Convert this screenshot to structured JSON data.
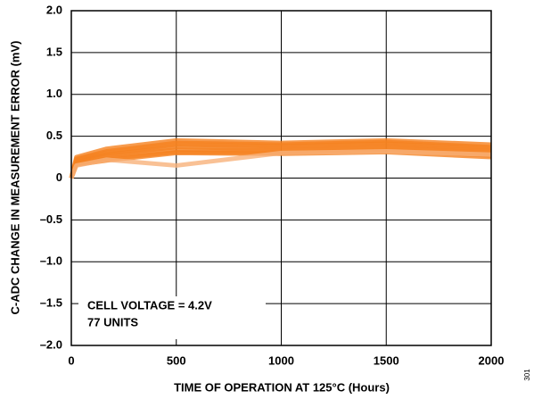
{
  "chart_data": {
    "type": "line",
    "x_label": "TIME OF OPERATION AT 125°C (Hours)",
    "y_label": "C-ADC CHANGE IN MEASUREMENT ERROR (mV)",
    "annotations": [
      "CELL VOLTAGE = 4.2V",
      "77 UNITS"
    ],
    "figure_id": "301",
    "x": [
      0,
      24,
      168,
      500,
      1000,
      1500,
      2000
    ],
    "series": [
      {
        "color": "#f58220",
        "values": [
          0,
          0.25,
          0.35,
          0.45,
          0.42,
          0.45,
          0.4
        ]
      },
      {
        "color": "#f58220",
        "values": [
          0,
          0.23,
          0.32,
          0.42,
          0.4,
          0.43,
          0.37
        ]
      },
      {
        "color": "#f58220",
        "values": [
          0,
          0.22,
          0.3,
          0.4,
          0.38,
          0.41,
          0.35
        ]
      },
      {
        "color": "#f58220",
        "values": [
          0,
          0.2,
          0.28,
          0.37,
          0.35,
          0.38,
          0.32
        ]
      },
      {
        "color": "#f58220",
        "values": [
          0,
          0.19,
          0.26,
          0.34,
          0.33,
          0.36,
          0.3
        ]
      },
      {
        "color": "#f58220",
        "values": [
          0,
          0.17,
          0.23,
          0.31,
          0.3,
          0.33,
          0.27
        ]
      },
      {
        "color": "#f58220",
        "values": [
          0,
          0.16,
          0.21,
          0.3,
          0.29,
          0.31,
          0.25
        ]
      },
      {
        "color": "#f8b27a",
        "values": [
          0,
          0.15,
          0.22,
          0.15,
          0.3,
          0.32,
          0.28
        ]
      }
    ],
    "xlim": [
      0,
      2000
    ],
    "xticks": [
      0,
      500,
      1000,
      1500,
      2000
    ],
    "ylim": [
      -2,
      2
    ],
    "yticks": [
      {
        "value": -2,
        "label": "–2.0"
      },
      {
        "value": -1.5,
        "label": "–1.5"
      },
      {
        "value": -1,
        "label": "–1.0"
      },
      {
        "value": -0.5,
        "label": "–0.5"
      },
      0,
      {
        "value": 0.5,
        "label": "0.5"
      },
      {
        "value": 1,
        "label": "1.0"
      },
      {
        "value": 1.5,
        "label": "1.5"
      },
      {
        "value": 2,
        "label": "2.0"
      }
    ],
    "grid": true
  }
}
